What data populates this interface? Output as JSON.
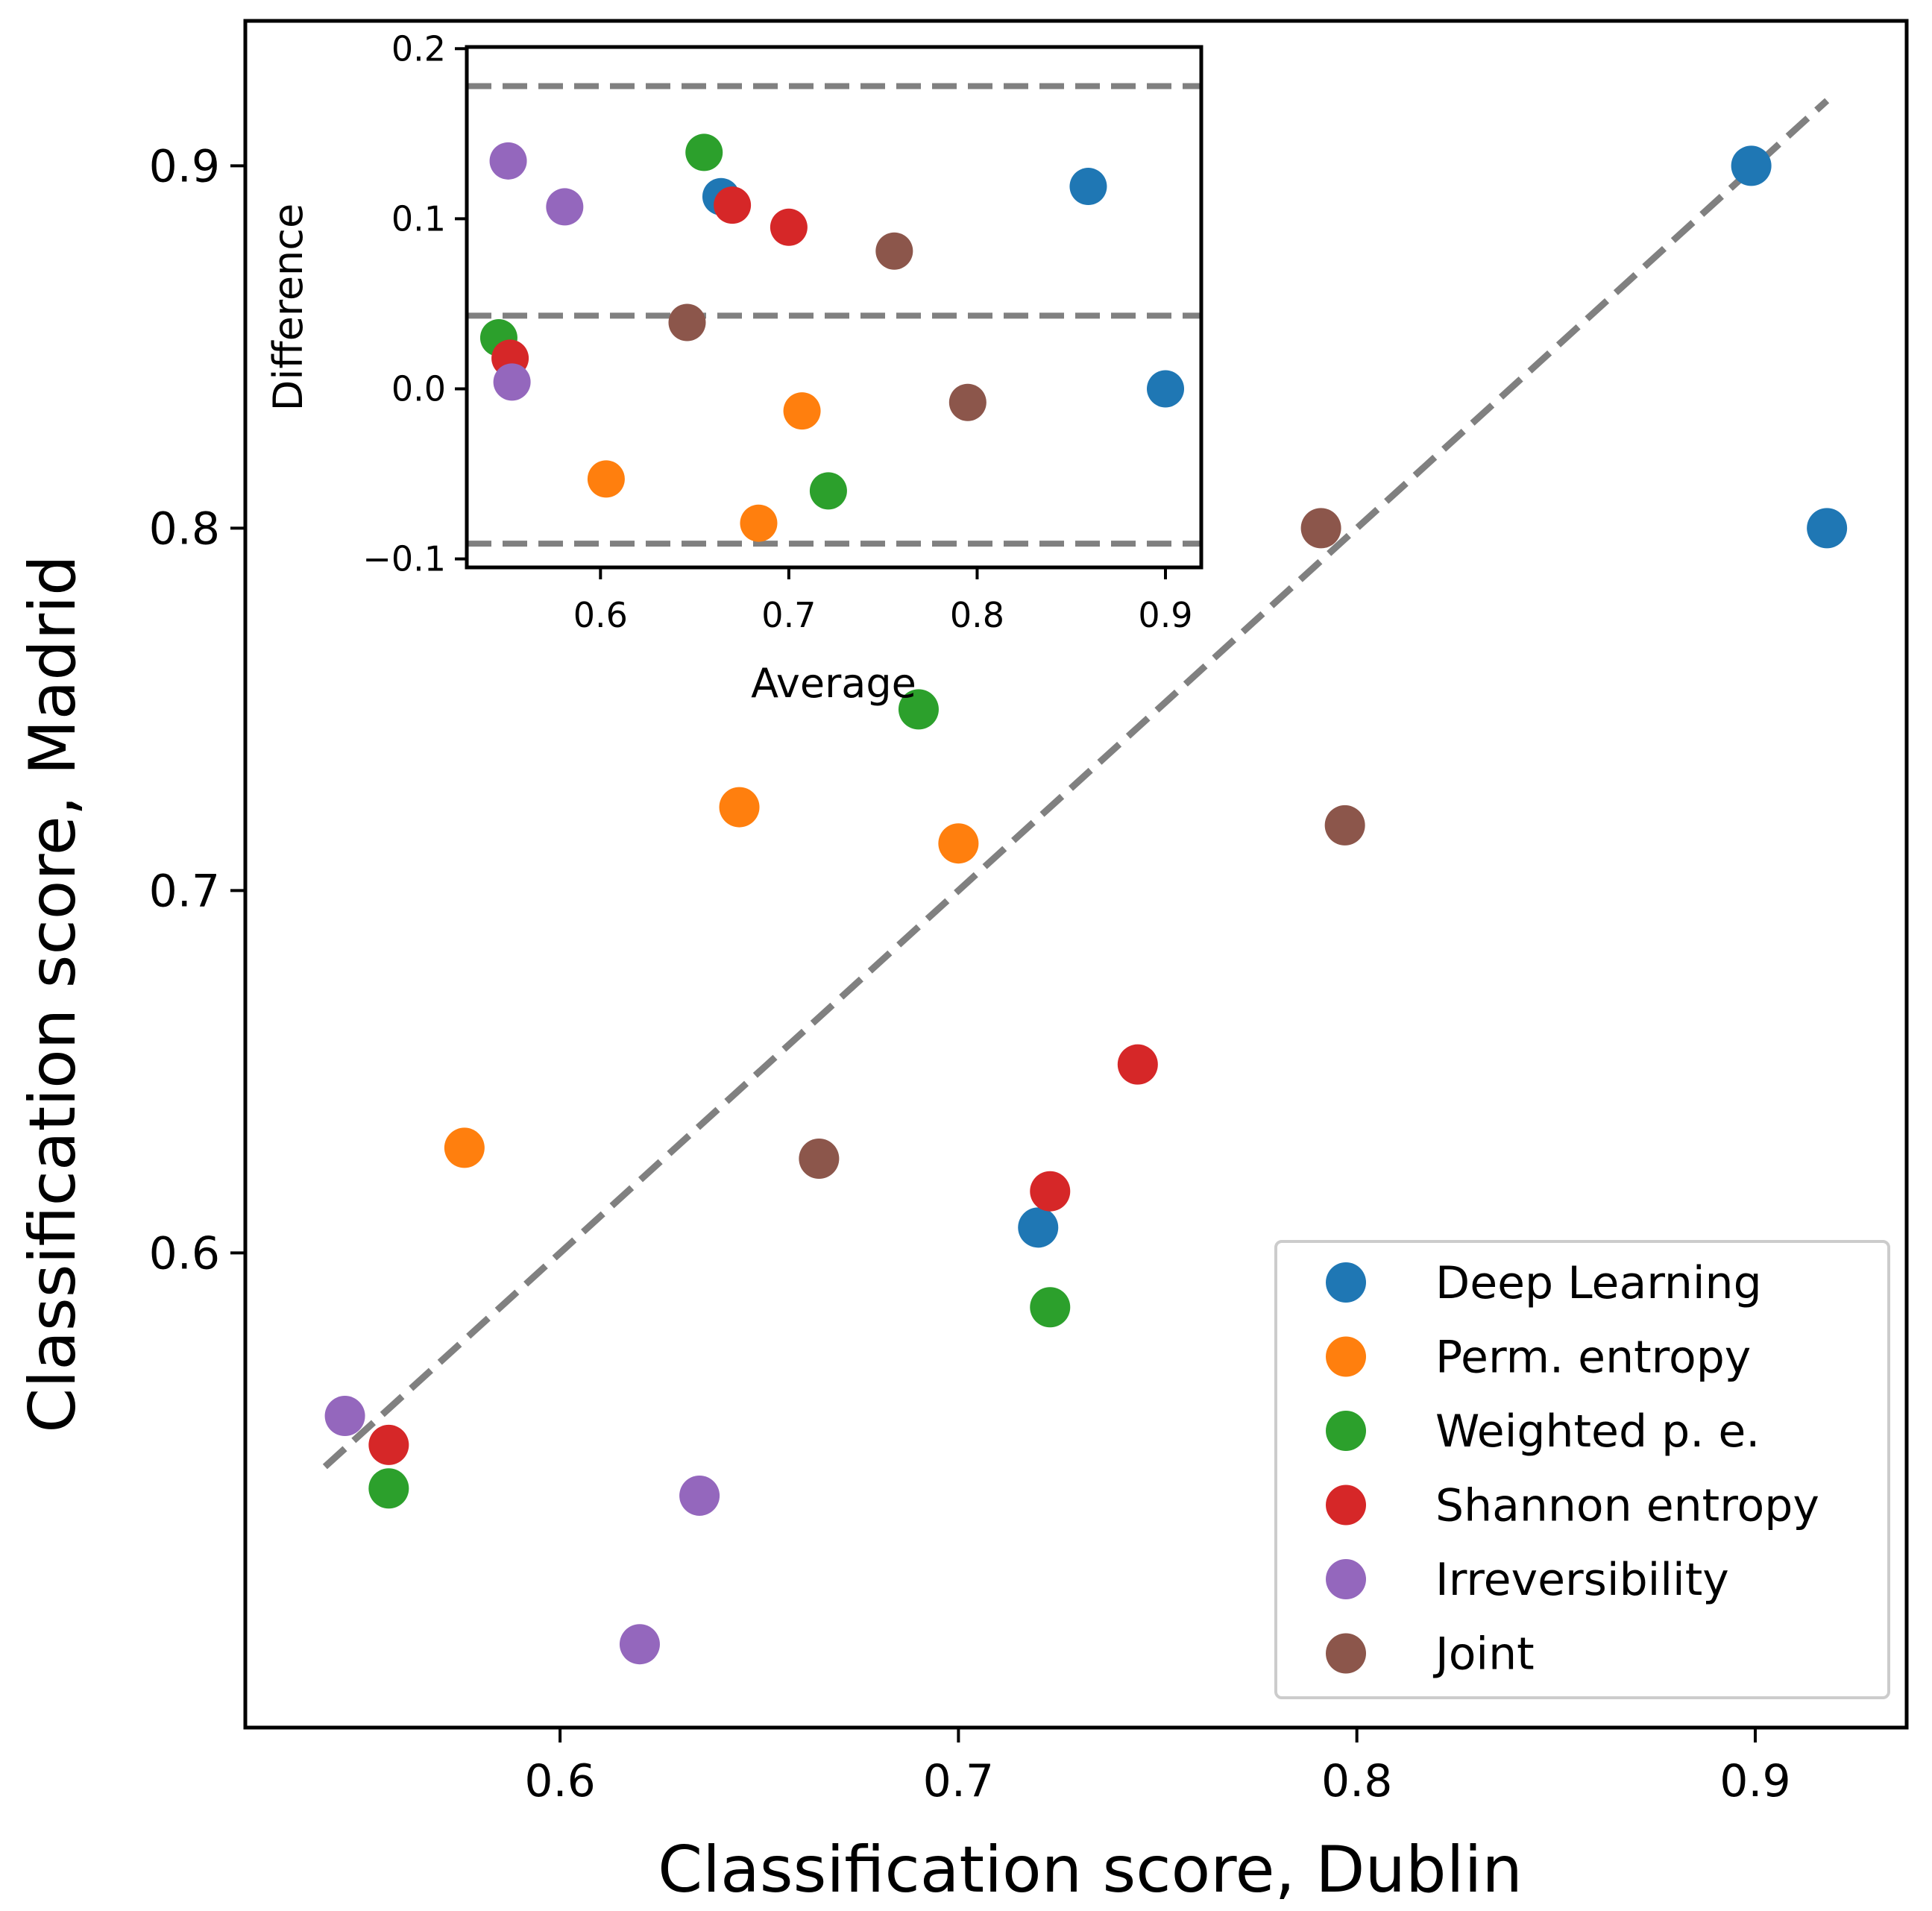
{
  "chart_data": [
    {
      "id": "main",
      "type": "scatter",
      "xlabel": "Classification score, Dublin",
      "ylabel": "Classification score, Madrid",
      "xlim": [
        0.521,
        0.938
      ],
      "ylim": [
        0.469,
        0.94
      ],
      "xticks": [
        0.6,
        0.7,
        0.8,
        0.9
      ],
      "yticks": [
        0.6,
        0.7,
        0.8,
        0.9
      ],
      "xtick_labels": [
        "0.6",
        "0.7",
        "0.8",
        "0.9"
      ],
      "ytick_labels": [
        "0.6",
        "0.7",
        "0.8",
        "0.9"
      ],
      "identity_line": {
        "from": 0.541,
        "to": 0.918,
        "color": "#808080",
        "style": "dashed"
      },
      "legend_position": "lower-right",
      "series": [
        {
          "name": "Deep Learning",
          "color": "#1f77b4",
          "points": [
            [
              0.899,
              0.9
            ],
            [
              0.918,
              0.8
            ],
            [
              0.72,
              0.607
            ]
          ]
        },
        {
          "name": "Perm. entropy",
          "color": "#ff7f0e",
          "points": [
            [
              0.645,
              0.723
            ],
            [
              0.7,
              0.713
            ],
            [
              0.576,
              0.629
            ]
          ]
        },
        {
          "name": "Weighted p. e.",
          "color": "#2ca02c",
          "points": [
            [
              0.69,
              0.75
            ],
            [
              0.723,
              0.585
            ],
            [
              0.557,
              0.535
            ]
          ]
        },
        {
          "name": "Shannon entropy",
          "color": "#d62728",
          "points": [
            [
              0.745,
              0.652
            ],
            [
              0.723,
              0.617
            ],
            [
              0.557,
              0.547
            ]
          ]
        },
        {
          "name": "Irreversibility",
          "color": "#9467bd",
          "points": [
            [
              0.546,
              0.555
            ],
            [
              0.635,
              0.533
            ],
            [
              0.62,
              0.492
            ]
          ]
        },
        {
          "name": "Joint",
          "color": "#8c564b",
          "points": [
            [
              0.791,
              0.8
            ],
            [
              0.797,
              0.718
            ],
            [
              0.665,
              0.626
            ]
          ]
        }
      ]
    },
    {
      "id": "inset",
      "type": "scatter",
      "xlabel": "Average",
      "ylabel": "Difference",
      "xlim": [
        0.529,
        0.919
      ],
      "ylim": [
        -0.105,
        0.201
      ],
      "xticks": [
        0.6,
        0.7,
        0.8,
        0.9
      ],
      "yticks": [
        -0.1,
        0.0,
        0.1,
        0.2
      ],
      "xtick_labels": [
        "0.6",
        "0.7",
        "0.8",
        "0.9"
      ],
      "ytick_labels": [
        "−0.1",
        "0.0",
        "0.1",
        "0.2"
      ],
      "reference_lines": [
        0.178,
        0.043,
        -0.091
      ],
      "series": [
        {
          "name": "Deep Learning",
          "color": "#1f77b4",
          "points": [
            [
              0.664,
              0.113
            ],
            [
              0.859,
              0.119
            ],
            [
              0.9,
              0.0
            ]
          ]
        },
        {
          "name": "Perm. entropy",
          "color": "#ff7f0e",
          "points": [
            [
              0.707,
              -0.013
            ],
            [
              0.603,
              -0.053
            ],
            [
              0.684,
              -0.079
            ]
          ]
        },
        {
          "name": "Weighted p. e.",
          "color": "#2ca02c",
          "points": [
            [
              0.655,
              0.139
            ],
            [
              0.721,
              -0.06
            ],
            [
              0.546,
              0.03
            ]
          ]
        },
        {
          "name": "Shannon entropy",
          "color": "#d62728",
          "points": [
            [
              0.67,
              0.108
            ],
            [
              0.7,
              0.095
            ],
            [
              0.552,
              0.018
            ]
          ]
        },
        {
          "name": "Irreversibility",
          "color": "#9467bd",
          "points": [
            [
              0.551,
              0.134
            ],
            [
              0.581,
              0.107
            ],
            [
              0.553,
              0.004
            ]
          ]
        },
        {
          "name": "Joint",
          "color": "#8c564b",
          "points": [
            [
              0.756,
              0.081
            ],
            [
              0.646,
              0.039
            ],
            [
              0.795,
              -0.008
            ]
          ]
        }
      ]
    }
  ]
}
